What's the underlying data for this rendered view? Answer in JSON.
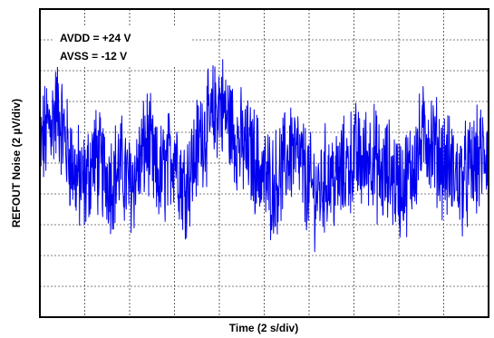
{
  "chart_data": {
    "type": "line",
    "title": "",
    "xlabel": "Time (2 s/div)",
    "ylabel": "REFOUT Noise (2 µV/div)",
    "x_unit_per_div": "2 s",
    "y_unit_per_div": "2 µV",
    "xlim": [
      0,
      20
    ],
    "ylim": [
      -10,
      10
    ],
    "x_divisions": 10,
    "y_divisions": 10,
    "grid": true,
    "annotations": [
      "AVDD = +24 V",
      "AVSS = -12 V"
    ],
    "series": [
      {
        "color": "#0000ee",
        "x": [
          0,
          0.4,
          0.8,
          1.2,
          1.6,
          2.0,
          2.4,
          2.8,
          3.2,
          3.6,
          4.0,
          4.4,
          4.8,
          5.2,
          5.6,
          6.0,
          6.4,
          6.8,
          7.2,
          7.6,
          8.0,
          8.4,
          8.8,
          9.2,
          9.6,
          10.0,
          10.4,
          10.8,
          11.2,
          11.6,
          12.0,
          12.4,
          12.8,
          13.2,
          13.6,
          14.0,
          14.4,
          14.8,
          15.2,
          15.6,
          16.0,
          16.4,
          16.8,
          17.2,
          17.6,
          18.0,
          18.4,
          18.8,
          19.2,
          19.6,
          20.0
        ],
        "y": [
          0.8,
          2.5,
          3.5,
          1.0,
          -0.8,
          -1.5,
          0.5,
          -0.5,
          -1.0,
          -0.2,
          -1.5,
          -0.3,
          1.5,
          -1.0,
          -0.5,
          1.0,
          -1.5,
          -0.2,
          2.0,
          2.5,
          4.0,
          2.8,
          1.5,
          0.8,
          0.2,
          -1.0,
          -1.5,
          -0.5,
          1.0,
          0.0,
          -1.5,
          -2.0,
          -0.8,
          -1.2,
          -0.5,
          0.5,
          0.0,
          0.8,
          -1.0,
          -0.5,
          -1.5,
          -1.0,
          0.5,
          2.0,
          1.0,
          0.0,
          -0.5,
          -1.2,
          -0.5,
          0.2,
          1.0
        ]
      }
    ]
  }
}
